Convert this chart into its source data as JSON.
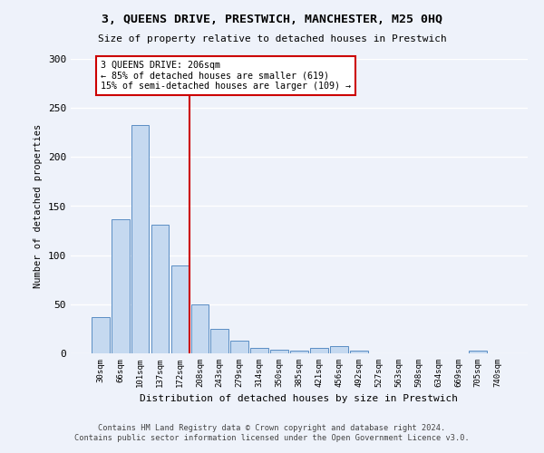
{
  "title1": "3, QUEENS DRIVE, PRESTWICH, MANCHESTER, M25 0HQ",
  "title2": "Size of property relative to detached houses in Prestwich",
  "xlabel": "Distribution of detached houses by size in Prestwich",
  "ylabel": "Number of detached properties",
  "bar_labels": [
    "30sqm",
    "66sqm",
    "101sqm",
    "137sqm",
    "172sqm",
    "208sqm",
    "243sqm",
    "279sqm",
    "314sqm",
    "350sqm",
    "385sqm",
    "421sqm",
    "456sqm",
    "492sqm",
    "527sqm",
    "563sqm",
    "598sqm",
    "634sqm",
    "669sqm",
    "705sqm",
    "740sqm"
  ],
  "bar_values": [
    37,
    137,
    233,
    131,
    90,
    50,
    25,
    13,
    6,
    4,
    3,
    6,
    7,
    3,
    0,
    0,
    0,
    0,
    0,
    3,
    0
  ],
  "bar_color": "#c5d9f0",
  "bar_edge_color": "#5b8ec4",
  "property_bin_index": 5,
  "property_label": "3 QUEENS DRIVE: 206sqm",
  "annotation_line1": "← 85% of detached houses are smaller (619)",
  "annotation_line2": "15% of semi-detached houses are larger (109) →",
  "annotation_box_color": "#ffffff",
  "annotation_box_edge_color": "#cc0000",
  "vline_color": "#cc0000",
  "ylim": [
    0,
    300
  ],
  "yticks": [
    0,
    50,
    100,
    150,
    200,
    250,
    300
  ],
  "footer1": "Contains HM Land Registry data © Crown copyright and database right 2024.",
  "footer2": "Contains public sector information licensed under the Open Government Licence v3.0.",
  "background_color": "#eef2fa",
  "grid_color": "#ffffff"
}
